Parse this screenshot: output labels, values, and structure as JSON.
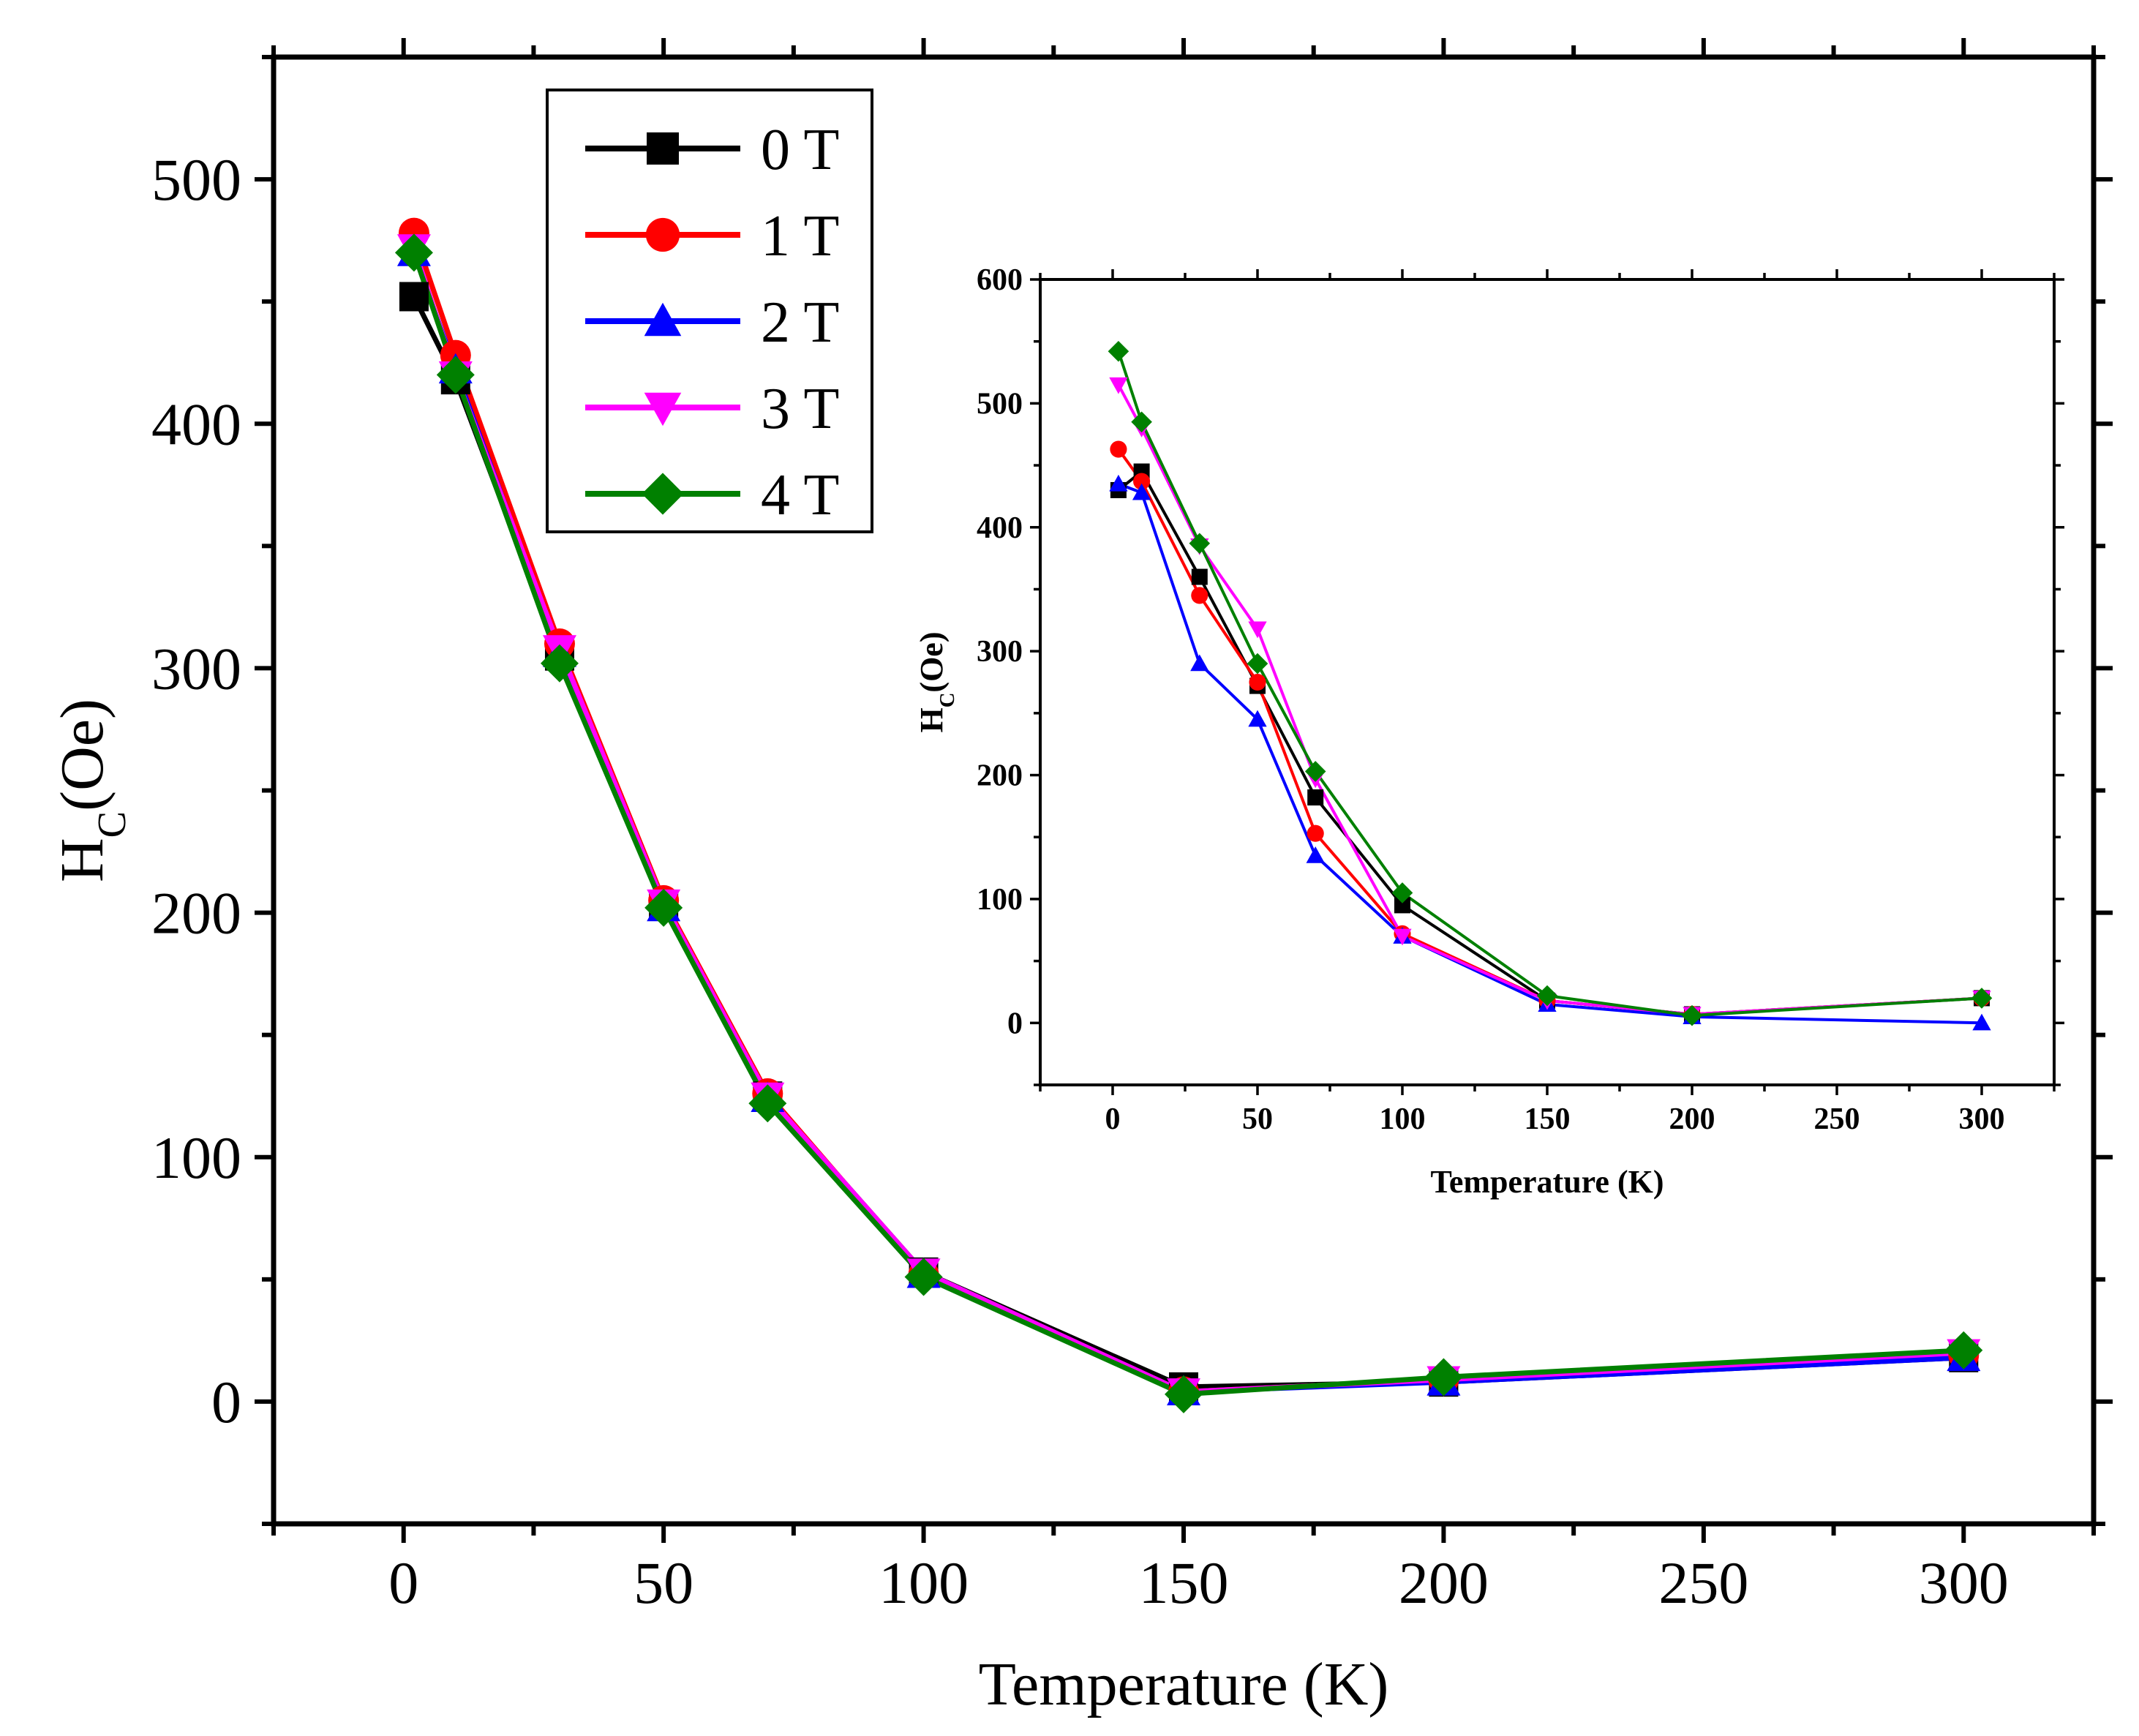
{
  "chart_data": [
    {
      "id": "main",
      "type": "line",
      "xlabel": "Temperature (K)",
      "ylabel_main": "H",
      "ylabel_sub": "C",
      "ylabel_rest": "(Oe)",
      "xlim": [
        -25,
        325
      ],
      "ylim": [
        -50,
        550
      ],
      "xticks": [
        0,
        50,
        100,
        150,
        200,
        250,
        300
      ],
      "xtick_labels": [
        "0",
        "50",
        "100",
        "150",
        "200",
        "250",
        "300"
      ],
      "yticks": [
        0,
        100,
        200,
        300,
        400,
        500
      ],
      "ytick_labels": [
        "0",
        "100",
        "200",
        "300",
        "400",
        "500"
      ],
      "legend_position": "top-left",
      "series": [
        {
          "name": "0 T",
          "color": "#000000",
          "marker": "square",
          "x": [
            2,
            10,
            30,
            50,
            70,
            100,
            150,
            200,
            300
          ],
          "y": [
            452,
            418,
            305,
            203,
            125,
            53,
            6,
            8,
            18
          ]
        },
        {
          "name": "1 T",
          "color": "#ff0000",
          "marker": "circle",
          "x": [
            2,
            10,
            30,
            50,
            70,
            100,
            150,
            200,
            300
          ],
          "y": [
            478,
            428,
            310,
            205,
            126,
            52,
            4,
            9,
            19
          ]
        },
        {
          "name": "2 T",
          "color": "#0000ff",
          "marker": "triangle-up",
          "x": [
            2,
            10,
            30,
            50,
            70,
            100,
            150,
            200,
            300
          ],
          "y": [
            470,
            422,
            306,
            202,
            124,
            52,
            4,
            8,
            18
          ]
        },
        {
          "name": "3 T",
          "color": "#ff00ff",
          "marker": "triangle-down",
          "x": [
            2,
            10,
            30,
            50,
            70,
            100,
            150,
            200,
            300
          ],
          "y": [
            472,
            420,
            308,
            204,
            125,
            53,
            4,
            9,
            20
          ]
        },
        {
          "name": "4 T",
          "color": "#008000",
          "marker": "diamond",
          "x": [
            2,
            10,
            30,
            50,
            70,
            100,
            150,
            200,
            300
          ],
          "y": [
            470,
            420,
            302,
            202,
            122,
            51,
            3,
            10,
            21
          ]
        }
      ]
    },
    {
      "id": "inset",
      "type": "line",
      "xlabel": "Temperature (K)",
      "ylabel_main": "H",
      "ylabel_sub": "C",
      "ylabel_rest": "(Oe)",
      "xlim": [
        -25,
        325
      ],
      "ylim": [
        -50,
        600
      ],
      "xticks": [
        0,
        50,
        100,
        150,
        200,
        250,
        300
      ],
      "xtick_labels": [
        "0",
        "50",
        "100",
        "150",
        "200",
        "250",
        "300"
      ],
      "yticks": [
        0,
        100,
        200,
        300,
        400,
        500,
        600
      ],
      "ytick_labels": [
        "0",
        "100",
        "200",
        "300",
        "400",
        "500",
        "600"
      ],
      "series": [
        {
          "name": "0 T",
          "color": "#000000",
          "marker": "square",
          "x": [
            2,
            10,
            30,
            50,
            70,
            100,
            150,
            200,
            300
          ],
          "y": [
            430,
            445,
            360,
            272,
            182,
            95,
            18,
            7,
            20
          ]
        },
        {
          "name": "1 T",
          "color": "#ff0000",
          "marker": "circle",
          "x": [
            2,
            10,
            30,
            50,
            70,
            100,
            150,
            200,
            300
          ],
          "y": [
            463,
            437,
            345,
            275,
            153,
            72,
            18,
            7,
            20
          ]
        },
        {
          "name": "2 T",
          "color": "#0000ff",
          "marker": "triangle-up",
          "x": [
            2,
            10,
            30,
            50,
            70,
            100,
            150,
            200,
            300
          ],
          "y": [
            435,
            428,
            290,
            245,
            135,
            70,
            15,
            5,
            0
          ]
        },
        {
          "name": "3 T",
          "color": "#ff00ff",
          "marker": "triangle-down",
          "x": [
            2,
            10,
            30,
            50,
            70,
            100,
            150,
            200,
            300
          ],
          "y": [
            515,
            480,
            385,
            318,
            197,
            70,
            18,
            7,
            20
          ]
        },
        {
          "name": "4 T",
          "color": "#008000",
          "marker": "diamond",
          "x": [
            2,
            10,
            30,
            50,
            70,
            100,
            150,
            200,
            300
          ],
          "y": [
            542,
            485,
            387,
            290,
            203,
            105,
            22,
            6,
            20
          ]
        }
      ]
    }
  ]
}
